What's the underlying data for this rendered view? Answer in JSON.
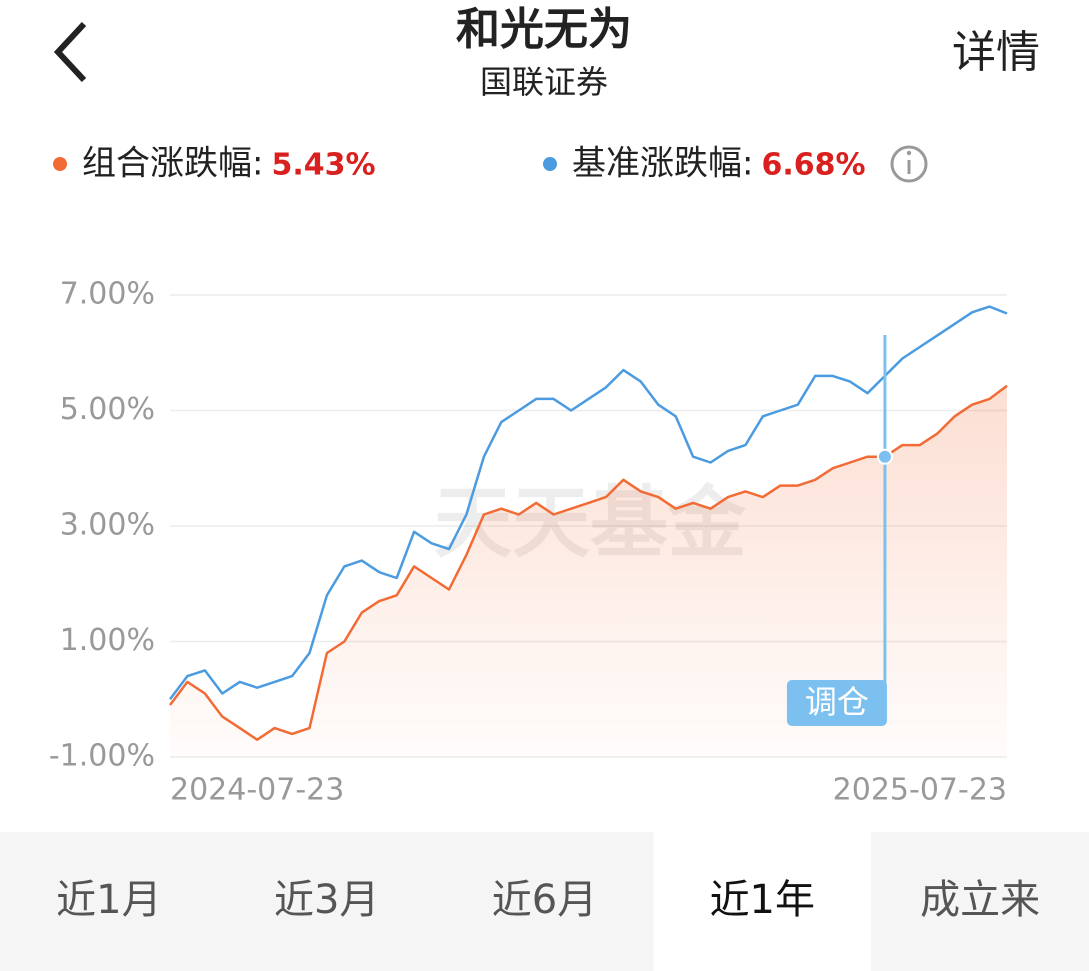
{
  "header": {
    "title": "和光无为",
    "subtitle": "国联证券",
    "action": "详情"
  },
  "chart_data": {
    "type": "line",
    "categories": [
      "2024-07-23",
      null,
      null,
      null,
      null,
      null,
      null,
      null,
      null,
      null,
      null,
      null,
      null,
      null,
      null,
      null,
      null,
      null,
      null,
      null,
      null,
      null,
      null,
      null,
      null,
      null,
      null,
      null,
      null,
      null,
      null,
      null,
      null,
      null,
      null,
      null,
      null,
      null,
      null,
      null,
      null,
      null,
      null,
      null,
      null,
      null,
      null,
      null,
      "2025-07-23"
    ],
    "series": [
      {
        "name": "组合涨跌幅:",
        "color": "#f26b35",
        "total": {
          "value": 5.43,
          "label": "5.43%"
        },
        "values": [
          -0.1,
          0.3,
          0.1,
          -0.3,
          -0.5,
          -0.7,
          -0.5,
          -0.6,
          -0.5,
          0.8,
          1.0,
          1.5,
          1.7,
          1.8,
          2.3,
          2.1,
          1.9,
          2.5,
          3.2,
          3.3,
          3.2,
          3.4,
          3.2,
          3.3,
          3.4,
          3.5,
          3.8,
          3.6,
          3.5,
          3.3,
          3.4,
          3.3,
          3.5,
          3.6,
          3.5,
          3.7,
          3.7,
          3.8,
          4.0,
          4.1,
          4.2,
          4.2,
          4.4,
          4.4,
          4.6,
          4.9,
          5.1,
          5.2,
          5.43
        ]
      },
      {
        "name": "基准涨跌幅:",
        "color": "#4a9be0",
        "total": {
          "value": 6.68,
          "label": "6.68%"
        },
        "values": [
          0.0,
          0.4,
          0.5,
          0.1,
          0.3,
          0.2,
          0.3,
          0.4,
          0.8,
          1.8,
          2.3,
          2.4,
          2.2,
          2.1,
          2.9,
          2.7,
          2.6,
          3.2,
          4.2,
          4.8,
          5.0,
          5.2,
          5.2,
          5.0,
          5.2,
          5.4,
          5.7,
          5.5,
          5.1,
          4.9,
          4.2,
          4.1,
          4.3,
          4.4,
          4.9,
          5.0,
          5.1,
          5.6,
          5.6,
          5.5,
          5.3,
          5.6,
          5.9,
          6.1,
          6.3,
          6.5,
          6.7,
          6.8,
          6.68
        ]
      }
    ],
    "ylim": [
      -1,
      7
    ],
    "yticks": [
      {
        "value": 7,
        "label": "7.00%"
      },
      {
        "value": 5,
        "label": "5.00%"
      },
      {
        "value": 3,
        "label": "3.00%"
      },
      {
        "value": 1,
        "label": "1.00%"
      },
      {
        "value": -1,
        "label": "-1.00%"
      }
    ],
    "grid": true,
    "watermark": "天天基金",
    "annotations": [
      {
        "text": "调仓",
        "x_index": 41
      }
    ]
  },
  "tabs": {
    "items": [
      "近1月",
      "近3月",
      "近6月",
      "近1年",
      "成立来"
    ],
    "selected": 3
  }
}
